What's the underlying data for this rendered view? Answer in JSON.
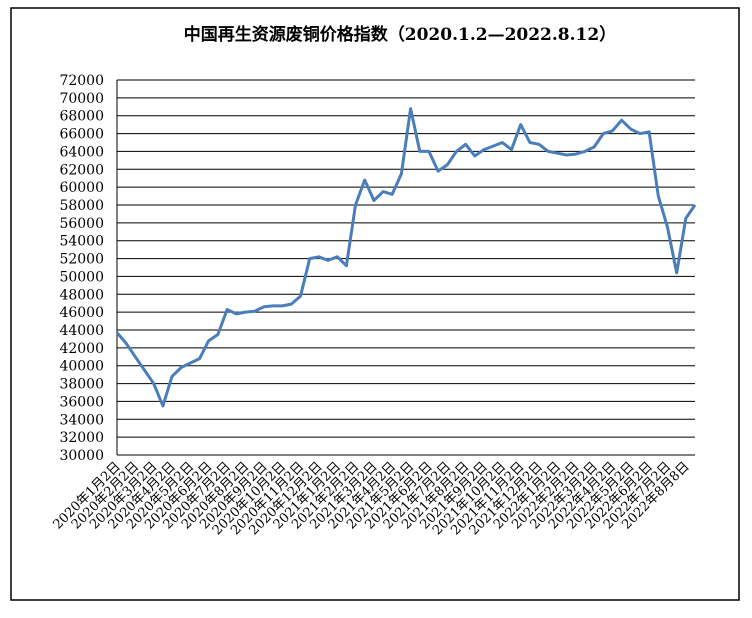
{
  "chart_data": {
    "type": "line",
    "title": "中国再生资源废铜价格指数（2020.1.2—2022.8.12）",
    "categories": [
      "2020年1月2日",
      null,
      "2020年2月2日",
      null,
      "2020年3月2日",
      null,
      "2020年4月2日",
      null,
      "2020年5月2日",
      null,
      "2020年6月2日",
      null,
      "2020年7月2日",
      null,
      "2020年8月2日",
      null,
      "2020年9月2日",
      null,
      "2020年10月2日",
      null,
      "2020年11月2日",
      null,
      "2020年12月2日",
      null,
      "2021年1月2日",
      null,
      "2021年2月2日",
      null,
      "2021年3月2日",
      null,
      "2021年4月2日",
      null,
      "2021年5月2日",
      null,
      "2021年6月2日",
      null,
      "2021年7月2日",
      null,
      "2021年8月2日",
      null,
      "2021年9月2日",
      null,
      "2021年10月2日",
      null,
      "2021年11月2日",
      null,
      "2021年12月2日",
      null,
      "2022年1月2日",
      null,
      "2022年2月2日",
      null,
      "2022年3月2日",
      null,
      "2022年4月2日",
      null,
      "2022年5月2日",
      null,
      "2022年6月2日",
      null,
      "2022年7月2日",
      null,
      "2022年8月8日",
      null
    ],
    "values": [
      43700,
      42500,
      41000,
      39500,
      38000,
      35500,
      38800,
      39800,
      40300,
      40800,
      42800,
      43500,
      46300,
      45800,
      46000,
      46100,
      46600,
      46700,
      46700,
      46900,
      47800,
      52000,
      52200,
      51800,
      52200,
      51200,
      58000,
      60800,
      58500,
      59500,
      59200,
      61500,
      68800,
      64000,
      64000,
      61800,
      62500,
      64000,
      64800,
      63500,
      64200,
      64600,
      65000,
      64200,
      67000,
      65000,
      64800,
      64000,
      63800,
      63600,
      63700,
      64000,
      64500,
      66000,
      66300,
      67500,
      66500,
      66000,
      66200,
      59000,
      55500,
      50400,
      56500,
      58000
    ],
    "color": "#4a7ebb",
    "ylim": [
      30000,
      72000
    ],
    "yticks": [
      30000,
      32000,
      34000,
      36000,
      38000,
      40000,
      42000,
      44000,
      46000,
      48000,
      50000,
      52000,
      54000,
      56000,
      58000,
      60000,
      62000,
      64000,
      66000,
      68000,
      70000,
      72000
    ],
    "grid": true
  }
}
